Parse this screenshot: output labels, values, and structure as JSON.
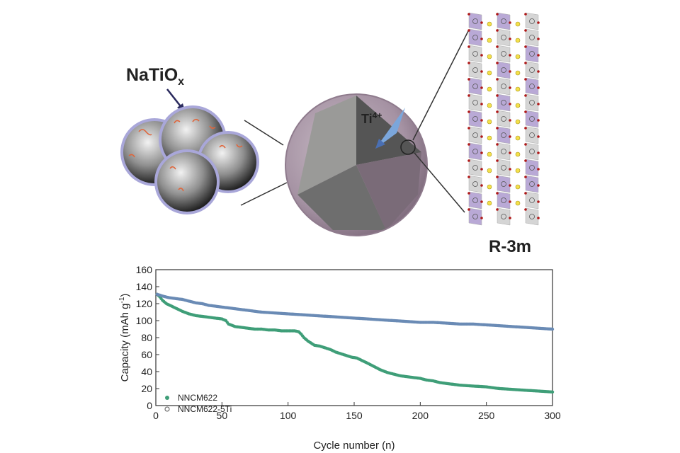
{
  "illustration": {
    "coating_label": "NaTiO",
    "coating_subscript": "x",
    "dopant_label": "Ti",
    "dopant_superscript": "4+",
    "space_group": "R-3m"
  },
  "chart_data": {
    "type": "scatter",
    "title": "",
    "xlabel": "Cycle number (n)",
    "ylabel": "Capacity (mAh g",
    "ylabel_superscript": "-1",
    "ylabel_close": ")",
    "xlim": [
      0,
      300
    ],
    "ylim": [
      0,
      160
    ],
    "x_ticks": [
      0,
      50,
      100,
      150,
      200,
      250,
      300
    ],
    "y_ticks": [
      0,
      20,
      40,
      60,
      80,
      100,
      120,
      140,
      160
    ],
    "legend_position": "bottom-left",
    "series": [
      {
        "name": "NNCM622",
        "color": "#3f9e78",
        "points": [
          [
            1,
            131
          ],
          [
            3,
            128
          ],
          [
            5,
            124
          ],
          [
            8,
            120
          ],
          [
            12,
            117
          ],
          [
            16,
            114
          ],
          [
            20,
            111
          ],
          [
            25,
            108
          ],
          [
            30,
            106
          ],
          [
            35,
            105
          ],
          [
            40,
            104
          ],
          [
            45,
            103
          ],
          [
            50,
            102
          ],
          [
            53,
            100
          ],
          [
            55,
            96
          ],
          [
            60,
            93
          ],
          [
            65,
            92
          ],
          [
            70,
            91
          ],
          [
            75,
            90
          ],
          [
            80,
            90
          ],
          [
            85,
            89
          ],
          [
            90,
            89
          ],
          [
            95,
            88
          ],
          [
            100,
            88
          ],
          [
            105,
            88
          ],
          [
            108,
            87
          ],
          [
            110,
            84
          ],
          [
            112,
            80
          ],
          [
            115,
            76
          ],
          [
            118,
            73
          ],
          [
            120,
            71
          ],
          [
            124,
            70
          ],
          [
            128,
            68
          ],
          [
            132,
            66
          ],
          [
            136,
            63
          ],
          [
            140,
            61
          ],
          [
            144,
            59
          ],
          [
            148,
            57
          ],
          [
            152,
            56
          ],
          [
            156,
            53
          ],
          [
            160,
            50
          ],
          [
            165,
            46
          ],
          [
            170,
            42
          ],
          [
            175,
            39
          ],
          [
            180,
            37
          ],
          [
            185,
            35
          ],
          [
            190,
            34
          ],
          [
            195,
            33
          ],
          [
            200,
            32
          ],
          [
            205,
            30
          ],
          [
            210,
            29
          ],
          [
            215,
            27
          ],
          [
            220,
            26
          ],
          [
            230,
            24
          ],
          [
            240,
            23
          ],
          [
            250,
            22
          ],
          [
            260,
            20
          ],
          [
            270,
            19
          ],
          [
            280,
            18
          ],
          [
            290,
            17
          ],
          [
            300,
            16
          ]
        ]
      },
      {
        "name": "NNCM622-5Ti",
        "color": "#6a8bb5",
        "points": [
          [
            1,
            131
          ],
          [
            5,
            129
          ],
          [
            10,
            127
          ],
          [
            15,
            126
          ],
          [
            20,
            125
          ],
          [
            25,
            123
          ],
          [
            30,
            121
          ],
          [
            35,
            120
          ],
          [
            40,
            118
          ],
          [
            45,
            117
          ],
          [
            50,
            116
          ],
          [
            55,
            115
          ],
          [
            60,
            114
          ],
          [
            65,
            113
          ],
          [
            70,
            112
          ],
          [
            75,
            111
          ],
          [
            80,
            110
          ],
          [
            90,
            109
          ],
          [
            100,
            108
          ],
          [
            110,
            107
          ],
          [
            120,
            106
          ],
          [
            130,
            105
          ],
          [
            140,
            104
          ],
          [
            150,
            103
          ],
          [
            160,
            102
          ],
          [
            170,
            101
          ],
          [
            180,
            100
          ],
          [
            190,
            99
          ],
          [
            200,
            98
          ],
          [
            210,
            98
          ],
          [
            220,
            97
          ],
          [
            230,
            96
          ],
          [
            240,
            96
          ],
          [
            250,
            95
          ],
          [
            260,
            94
          ],
          [
            270,
            93
          ],
          [
            280,
            92
          ],
          [
            290,
            91
          ],
          [
            300,
            90
          ]
        ]
      }
    ]
  }
}
